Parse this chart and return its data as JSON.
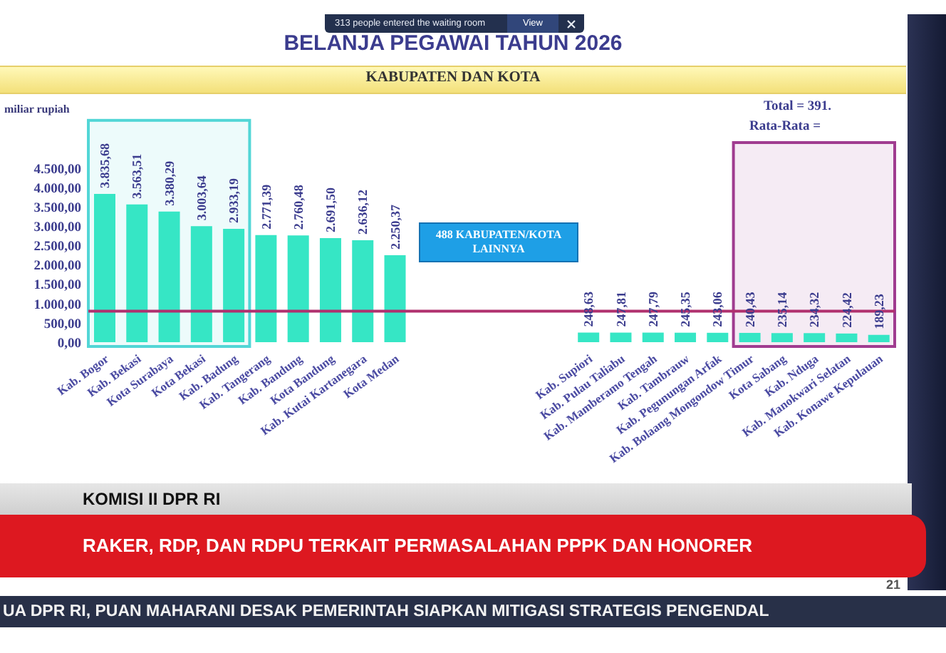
{
  "chart_data": {
    "type": "bar",
    "title": "BELANJA PEGAWAI TAHUN 2026",
    "subtitle": "KABUPATEN DAN KOTA",
    "ylabel": "miliar rupiah",
    "categories": [
      "Kab. Bogor",
      "Kab. Bekasi",
      "Kota Surabaya",
      "Kota Bekasi",
      "Kab. Badung",
      "Kab. Tangerang",
      "Kab. Bandung",
      "Kota Bandung",
      "Kab. Kutai Kartanegara",
      "Kota Medan",
      null,
      null,
      null,
      null,
      null,
      "Kab. Supiori",
      "Kab. Pulau Taliabu",
      "Kab. Mamberamo Tengah",
      "Kab. Tambrauw",
      "Kab. Pegunungan Arfak",
      "Kab. Bolaang Mongondow Timur",
      "Kota Sabang",
      "Kab. Nduga",
      "Kab. Manokwari Selatan",
      "Kab. Konawe Kepulauan"
    ],
    "values": [
      3835.68,
      3563.51,
      3380.29,
      3003.64,
      2933.19,
      2771.39,
      2760.48,
      2691.5,
      2636.12,
      2250.37,
      null,
      null,
      null,
      null,
      null,
      248.63,
      247.81,
      247.79,
      245.35,
      243.06,
      240.43,
      235.14,
      234.32,
      224.42,
      189.23
    ],
    "value_labels": [
      "3.835,68",
      "3.563,51",
      "3.380,29",
      "3.003,64",
      "2.933,19",
      "2.771,39",
      "2.760,48",
      "2.691,50",
      "2.636,12",
      "2.250,37",
      null,
      null,
      null,
      null,
      null,
      "248,63",
      "247,81",
      "247,79",
      "245,35",
      "243,06",
      "240,43",
      "235,14",
      "234,32",
      "224,42",
      "189,23"
    ],
    "color": "#36e6c5",
    "ylim": [
      0,
      4500
    ],
    "yticks": [
      {
        "value": 0,
        "label": "0,00"
      },
      {
        "value": 500,
        "label": "500,00"
      },
      {
        "value": 1000,
        "label": "1.000,00"
      },
      {
        "value": 1500,
        "label": "1.500,00"
      },
      {
        "value": 2000,
        "label": "2.000,00"
      },
      {
        "value": 2500,
        "label": "2.500,00"
      },
      {
        "value": 3000,
        "label": "3.000,00"
      },
      {
        "value": 3500,
        "label": "3.500,00"
      },
      {
        "value": 4000,
        "label": "4.000,00"
      },
      {
        "value": 4500,
        "label": "4.500,00"
      }
    ],
    "ref_lines": [
      {
        "axis": "y",
        "value": 800,
        "color": "#b0306e"
      }
    ],
    "bands": [
      {
        "axis": "x",
        "from": "Kab. Bogor",
        "to": "Kab. Badung",
        "color": "#52d6d6"
      },
      {
        "axis": "x",
        "from": "Kab. Bolaang Mongondow Timur",
        "to": "Kab. Konawe Kepulauan",
        "color": "#a03c90"
      }
    ],
    "annotations": [
      "313 people entered the waiting room",
      "View",
      "Total = 391.",
      "Rata-Rata =",
      "488 KABUPATEN/KOTA LAINNYA",
      "21",
      "KOMISI II DPR RI",
      "RAKER, RDP, DAN RDPU TERKAIT PERMASALAHAN PPPK DAN HONORER",
      "UA DPR RI, PUAN MAHARANI DESAK PEMERINTAH SIAPKAN MITIGASI STRATEGIS PENGENDAL"
    ]
  }
}
